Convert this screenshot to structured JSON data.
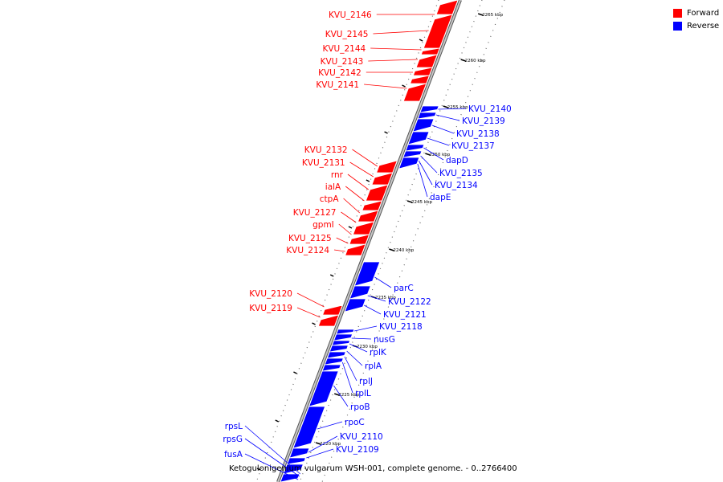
{
  "legend": {
    "forward": {
      "label": "Forward",
      "color": "#ff0000"
    },
    "reverse": {
      "label": "Reverse",
      "color": "#0000ff"
    }
  },
  "caption": "Ketogulonigenium vulgarum WSH-001, complete genome. - 0..2766400",
  "ticks": [
    "2265 kbp",
    "2260 kbp",
    "2255 kbp",
    "2250 kbp",
    "2245 kbp",
    "2240 kbp",
    "2235 kbp",
    "2230 kbp",
    "2225 kbp",
    "2220 kbp"
  ],
  "forward_genes": [
    "KVU_2146",
    "KVU_2145",
    "KVU_2144",
    "KVU_2143",
    "KVU_2142",
    "KVU_2141",
    "KVU_2132",
    "KVU_2131",
    "rnr",
    "ialA",
    "ctpA",
    "KVU_2127",
    "gpmI",
    "KVU_2125",
    "KVU_2124",
    "KVU_2120",
    "KVU_2119"
  ],
  "reverse_genes": [
    "KVU_2140",
    "KVU_2139",
    "KVU_2138",
    "KVU_2137",
    "dapD",
    "KVU_2135",
    "KVU_2134",
    "dapE",
    "parC",
    "KVU_2122",
    "KVU_2121",
    "KVU_2118",
    "nusG",
    "rplK",
    "rplA",
    "rplJ",
    "rplL",
    "rpoB",
    "rpoC",
    "KVU_2110",
    "KVU_2109",
    "rpsL",
    "rpsG",
    "fusA"
  ]
}
